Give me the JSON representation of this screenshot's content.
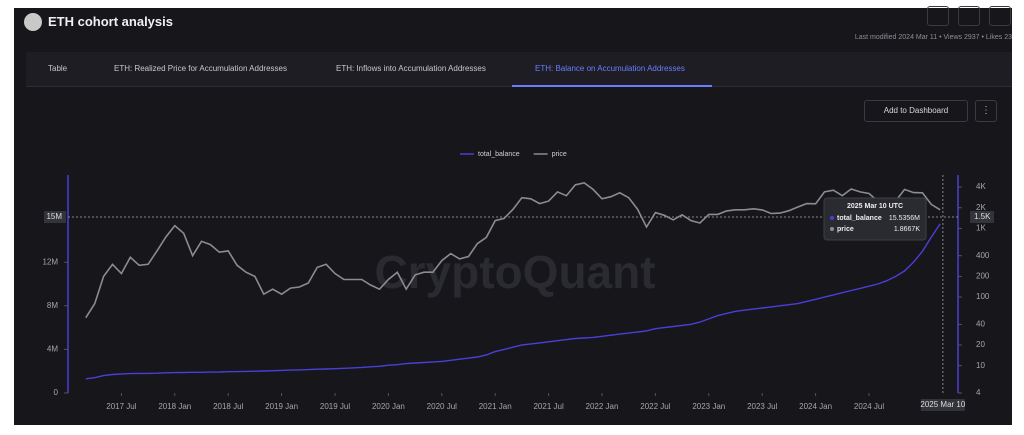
{
  "header": {
    "title": "ETH cohort analysis",
    "meta": "Last modified 2024 Mar 11 • Views 2937 • Likes 23"
  },
  "tabs": [
    "Table",
    "ETH: Realized Price for Accumulation Addresses",
    "ETH: Inflows into Accumulation Addresses",
    "ETH: Balance on Accumulation Addresses"
  ],
  "toolbar": {
    "button": "Add to Dashboard"
  },
  "chart_data": {
    "type": "line",
    "watermark": "CryptoQuant",
    "legend": "top",
    "x": [
      "2017 Mar",
      "2017 Apr",
      "2017 May",
      "2017 Jun",
      "2017 Jul",
      "2017 Aug",
      "2017 Sep",
      "2017 Oct",
      "2017 Nov",
      "2017 Dec",
      "2018 Jan",
      "2018 Feb",
      "2018 Mar",
      "2018 Apr",
      "2018 May",
      "2018 Jun",
      "2018 Jul",
      "2018 Aug",
      "2018 Sep",
      "2018 Oct",
      "2018 Nov",
      "2018 Dec",
      "2019 Jan",
      "2019 Feb",
      "2019 Mar",
      "2019 Apr",
      "2019 May",
      "2019 Jun",
      "2019 Jul",
      "2019 Aug",
      "2019 Sep",
      "2019 Oct",
      "2019 Nov",
      "2019 Dec",
      "2020 Jan",
      "2020 Feb",
      "2020 Mar",
      "2020 Apr",
      "2020 May",
      "2020 Jun",
      "2020 Jul",
      "2020 Aug",
      "2020 Sep",
      "2020 Oct",
      "2020 Nov",
      "2020 Dec",
      "2021 Jan",
      "2021 Feb",
      "2021 Mar",
      "2021 Apr",
      "2021 May",
      "2021 Jun",
      "2021 Jul",
      "2021 Aug",
      "2021 Sep",
      "2021 Oct",
      "2021 Nov",
      "2021 Dec",
      "2022 Jan",
      "2022 Feb",
      "2022 Mar",
      "2022 Apr",
      "2022 May",
      "2022 Jun",
      "2022 Jul",
      "2022 Aug",
      "2022 Sep",
      "2022 Oct",
      "2022 Nov",
      "2022 Dec",
      "2023 Jan",
      "2023 Feb",
      "2023 Mar",
      "2023 Apr",
      "2023 May",
      "2023 Jun",
      "2023 Jul",
      "2023 Aug",
      "2023 Sep",
      "2023 Oct",
      "2023 Nov",
      "2023 Dec",
      "2024 Jan",
      "2024 Feb",
      "2024 Mar",
      "2024 Apr",
      "2024 May",
      "2024 Jun",
      "2024 Jul",
      "2024 Aug",
      "2024 Sep",
      "2024 Oct",
      "2024 Nov",
      "2024 Dec",
      "2025 Jan",
      "2025 Feb",
      "2025 Mar"
    ],
    "series": [
      {
        "name": "total_balance",
        "color": "#4a3fd8",
        "axis": "y",
        "values": [
          1300000,
          1400000,
          1600000,
          1700000,
          1750000,
          1780000,
          1800000,
          1800000,
          1820000,
          1850000,
          1870000,
          1880000,
          1900000,
          1900000,
          1920000,
          1930000,
          1950000,
          1960000,
          1980000,
          2000000,
          2020000,
          2050000,
          2070000,
          2100000,
          2120000,
          2150000,
          2180000,
          2200000,
          2230000,
          2270000,
          2300000,
          2350000,
          2400000,
          2450000,
          2550000,
          2600000,
          2700000,
          2750000,
          2800000,
          2850000,
          2900000,
          3000000,
          3100000,
          3200000,
          3300000,
          3500000,
          3800000,
          4000000,
          4200000,
          4400000,
          4500000,
          4600000,
          4700000,
          4800000,
          4900000,
          5000000,
          5050000,
          5100000,
          5200000,
          5300000,
          5400000,
          5500000,
          5600000,
          5700000,
          5900000,
          6000000,
          6100000,
          6200000,
          6300000,
          6500000,
          6800000,
          7100000,
          7300000,
          7500000,
          7600000,
          7700000,
          7800000,
          7900000,
          8000000,
          8100000,
          8200000,
          8400000,
          8600000,
          8800000,
          9000000,
          9200000,
          9400000,
          9600000,
          9800000,
          10000000,
          10300000,
          10700000,
          11200000,
          12000000,
          13000000,
          14300000,
          15535600
        ]
      },
      {
        "name": "price",
        "color": "#8c8c90",
        "axis": "y2",
        "values": [
          50,
          80,
          200,
          300,
          220,
          380,
          290,
          300,
          470,
          750,
          1100,
          850,
          400,
          650,
          580,
          450,
          470,
          290,
          230,
          200,
          110,
          130,
          110,
          135,
          140,
          160,
          270,
          300,
          220,
          180,
          180,
          180,
          150,
          130,
          180,
          230,
          130,
          210,
          230,
          230,
          340,
          430,
          360,
          390,
          600,
          740,
          1300,
          1400,
          1900,
          2800,
          2700,
          2300,
          2500,
          3400,
          3000,
          4300,
          4600,
          3700,
          2700,
          2900,
          3300,
          2800,
          1900,
          1050,
          1700,
          1550,
          1330,
          1580,
          1300,
          1200,
          1600,
          1600,
          1800,
          1870,
          1870,
          1930,
          1860,
          1650,
          1670,
          1810,
          2050,
          2300,
          2280,
          3400,
          3600,
          3000,
          3750,
          3400,
          3230,
          2500,
          2600,
          2520,
          3700,
          3330,
          3300,
          2240,
          1870
        ]
      }
    ],
    "xlim": [
      "2017 Jan",
      "2025 May"
    ],
    "xticks": [
      "2017 Jul",
      "2018 Jan",
      "2018 Jul",
      "2019 Jan",
      "2019 Jul",
      "2020 Jan",
      "2020 Jul",
      "2021 Jan",
      "2021 Jul",
      "2022 Jan",
      "2022 Jul",
      "2023 Jan",
      "2023 Jul",
      "2024 Jan",
      "2024 Jul"
    ],
    "ylim": [
      0,
      20000000
    ],
    "yticks": [
      0,
      {
        "value": 4000000,
        "label": "4M"
      },
      {
        "value": 8000000,
        "label": "8M"
      },
      {
        "value": 12000000,
        "label": "12M"
      }
    ],
    "y2lim": [
      4,
      6000
    ],
    "y2_log": true,
    "y2ticks": [
      4,
      10,
      20,
      40,
      100,
      200,
      400,
      {
        "value": 1000,
        "label": "1K"
      },
      {
        "value": 2000,
        "label": "2K"
      },
      {
        "value": 4000,
        "label": "4K"
      }
    ],
    "crosshair": {
      "x": "2025 Mar 10",
      "y_label": "15M",
      "y2_label": "1.5K"
    },
    "tooltip": {
      "title": "2025 Mar 10 UTC",
      "values": [
        "15.5356M",
        "1.8667K"
      ]
    }
  }
}
